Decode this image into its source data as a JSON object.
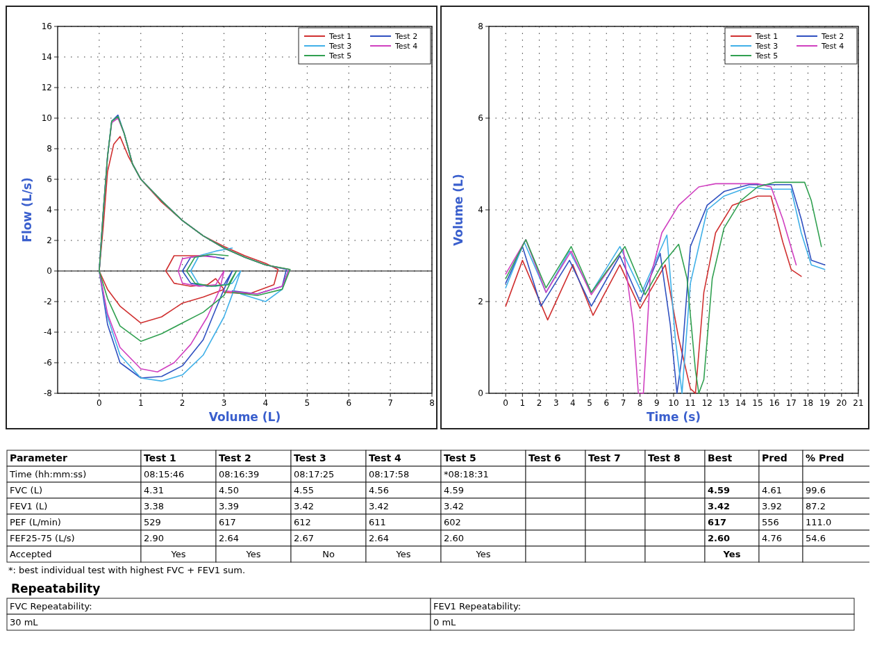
{
  "chart_data": [
    {
      "type": "line",
      "xlabel": "Volume (L)",
      "ylabel": "Flow (L/s)",
      "xlim": [
        -1,
        8
      ],
      "ylim": [
        -8,
        16
      ],
      "xticks": [
        0,
        1,
        2,
        3,
        4,
        5,
        6,
        7,
        8
      ],
      "yticks": [
        -8,
        -6,
        -4,
        -2,
        0,
        2,
        4,
        6,
        8,
        10,
        12,
        14,
        16
      ],
      "grid": true,
      "legend": "top right",
      "ref_lines": [
        {
          "axis": "y",
          "value": 0,
          "color": "#000000"
        }
      ],
      "series": [
        {
          "name": "Test 1",
          "color": "#d03030",
          "x": [
            2.6,
            2.2,
            1.8,
            1.6,
            1.8,
            2.2,
            2.6,
            2.8,
            3.0,
            2.5,
            2.0,
            1.5,
            1.0,
            0.5,
            0.2,
            0,
            0.1,
            0.2,
            0.35,
            0.5,
            0.7,
            1.0,
            1.5,
            2.0,
            2.5,
            3.0,
            3.5,
            4.0,
            4.3,
            4.2,
            3.6,
            3.0
          ],
          "values": [
            1.0,
            1.0,
            1.0,
            0,
            -0.8,
            -1.0,
            -0.9,
            -0.5,
            -1.2,
            -1.7,
            -2.1,
            -3.0,
            -3.4,
            -2.3,
            -1.2,
            0,
            3,
            6.5,
            8.3,
            8.8,
            7.5,
            6.0,
            4.5,
            3.3,
            2.3,
            1.6,
            1.0,
            0.5,
            0.1,
            -0.9,
            -1.5,
            -1.4
          ]
        },
        {
          "name": "Test 2",
          "color": "#3050c0",
          "x": [
            3.0,
            2.6,
            2.2,
            2.0,
            2.2,
            2.6,
            3.0,
            3.2,
            3.0,
            2.8,
            2.5,
            2.0,
            1.5,
            1.0,
            0.5,
            0.2,
            0,
            0.1,
            0.2,
            0.3,
            0.45,
            0.6,
            0.8,
            1.0,
            1.5,
            2.0,
            2.5,
            3.0,
            3.5,
            4.0,
            4.5,
            4.4,
            3.8,
            3.2
          ],
          "values": [
            0.8,
            1.0,
            0.9,
            0,
            -0.8,
            -1.0,
            -0.9,
            0,
            -1.2,
            -2.5,
            -4.5,
            -6.2,
            -6.9,
            -7.0,
            -6.0,
            -3.5,
            0,
            4,
            7.5,
            9.8,
            10.2,
            9.0,
            7.0,
            6.0,
            4.6,
            3.3,
            2.3,
            1.5,
            0.9,
            0.4,
            0.1,
            -1.0,
            -1.5,
            -1.3
          ]
        },
        {
          "name": "Test 3",
          "color": "#40b0e8",
          "x": [
            3.2,
            2.8,
            2.4,
            2.2,
            2.4,
            2.8,
            3.2,
            3.4,
            3.3,
            3.0,
            2.5,
            2.0,
            1.5,
            1.0,
            0.5,
            0.2,
            0,
            0.1,
            0.2,
            0.3,
            0.45,
            0.6,
            0.8,
            1.0,
            1.5,
            2.0,
            2.5,
            3.0,
            3.5,
            4.0,
            4.55,
            4.4,
            4.0,
            3.4
          ],
          "values": [
            1.5,
            1.3,
            1.0,
            0,
            -0.9,
            -1.0,
            -0.8,
            0,
            -0.8,
            -3.0,
            -5.5,
            -6.8,
            -7.2,
            -7.0,
            -5.5,
            -3.0,
            0,
            4,
            7.5,
            9.8,
            10.1,
            9.0,
            7.0,
            6.0,
            4.6,
            3.3,
            2.3,
            1.5,
            0.9,
            0.4,
            0.1,
            -1.2,
            -2.0,
            -1.5
          ]
        },
        {
          "name": "Test 4",
          "color": "#d040c0",
          "x": [
            2.8,
            2.4,
            2.0,
            1.9,
            2.0,
            2.4,
            2.8,
            3.0,
            2.9,
            2.6,
            2.2,
            1.8,
            1.4,
            1.0,
            0.5,
            0.2,
            0,
            0.1,
            0.2,
            0.3,
            0.45,
            0.6,
            0.8,
            1.0,
            1.5,
            2.0,
            2.5,
            3.0,
            3.5,
            4.0,
            4.56,
            4.4,
            3.8,
            3.0
          ],
          "values": [
            0.9,
            1.0,
            0.8,
            0,
            -0.8,
            -1.0,
            -0.9,
            0,
            -1.2,
            -3.0,
            -4.8,
            -6.0,
            -6.6,
            -6.4,
            -5.0,
            -2.8,
            0,
            4,
            7.5,
            9.7,
            10.0,
            9.0,
            7.0,
            6.0,
            4.6,
            3.3,
            2.3,
            1.5,
            0.9,
            0.4,
            0.1,
            -1.0,
            -1.5,
            -1.3
          ]
        },
        {
          "name": "Test 5",
          "color": "#30a050",
          "x": [
            3.1,
            2.7,
            2.3,
            2.1,
            2.3,
            2.7,
            3.1,
            3.3,
            3.0,
            2.5,
            2.0,
            1.5,
            1.0,
            0.5,
            0.2,
            0,
            0.1,
            0.2,
            0.3,
            0.45,
            0.6,
            0.8,
            1.0,
            1.5,
            2.0,
            2.5,
            3.0,
            3.5,
            4.0,
            4.59,
            4.4,
            3.8,
            3.2
          ],
          "values": [
            1.0,
            1.1,
            0.9,
            0,
            -0.8,
            -1.0,
            -0.9,
            0,
            -1.6,
            -2.7,
            -3.4,
            -4.1,
            -4.6,
            -3.6,
            -1.8,
            0,
            4,
            7.5,
            9.8,
            10.1,
            9.0,
            7.0,
            6.0,
            4.6,
            3.3,
            2.3,
            1.5,
            0.9,
            0.4,
            0.1,
            -1.2,
            -1.6,
            -1.4
          ]
        }
      ]
    },
    {
      "type": "line",
      "xlabel": "Time (s)",
      "ylabel": "Volume (L)",
      "xlim": [
        -1,
        21
      ],
      "ylim": [
        0,
        8
      ],
      "xticks": [
        0,
        1,
        2,
        3,
        4,
        5,
        6,
        7,
        8,
        9,
        10,
        11,
        12,
        13,
        14,
        15,
        16,
        17,
        18,
        19,
        20,
        21
      ],
      "yticks": [
        0,
        2,
        4,
        6,
        8
      ],
      "grid": true,
      "legend": "top right",
      "series": [
        {
          "name": "Test 1",
          "color": "#d03030",
          "x": [
            0,
            1,
            2.5,
            4,
            5.2,
            6.8,
            8,
            9.5,
            10.3,
            11,
            11.3,
            11.8,
            12.5,
            13.5,
            15,
            15.8,
            16.5,
            17,
            17.6
          ],
          "values": [
            1.9,
            2.9,
            1.6,
            2.8,
            1.7,
            2.8,
            1.85,
            2.8,
            1.2,
            0.1,
            0,
            2.2,
            3.5,
            4.1,
            4.3,
            4.3,
            3.3,
            2.7,
            2.55
          ]
        },
        {
          "name": "Test 2",
          "color": "#3050c0",
          "x": [
            0,
            1,
            2.1,
            3.8,
            5.1,
            6.8,
            8,
            9.2,
            9.8,
            10.2,
            10.5,
            11,
            12,
            13,
            14.5,
            17,
            17.6,
            18.2,
            19
          ],
          "values": [
            2.4,
            3.2,
            1.9,
            2.9,
            1.9,
            3.0,
            2.0,
            3.05,
            1.5,
            0,
            0.8,
            3.2,
            4.1,
            4.4,
            4.55,
            4.55,
            3.8,
            2.9,
            2.8
          ]
        },
        {
          "name": "Test 3",
          "color": "#40b0e8",
          "x": [
            0,
            1.1,
            2.4,
            3.8,
            5.1,
            6.8,
            8.1,
            9.6,
            10.1,
            10.5,
            11,
            12,
            13,
            14.5,
            15.5,
            17,
            17.6,
            18.2,
            19
          ],
          "values": [
            2.3,
            3.3,
            2.2,
            3.1,
            2.2,
            3.2,
            2.2,
            3.45,
            1.2,
            0,
            2.4,
            4.0,
            4.3,
            4.5,
            4.45,
            4.45,
            3.5,
            2.8,
            2.7
          ]
        },
        {
          "name": "Test 4",
          "color": "#d040c0",
          "x": [
            0,
            1.2,
            2.4,
            3.9,
            5.1,
            7,
            7.6,
            7.9,
            8.2,
            8.6,
            9.3,
            10.3,
            11.5,
            12.5,
            15,
            15.8,
            16.5,
            17.3
          ],
          "values": [
            2.6,
            3.35,
            2.2,
            3.1,
            2.15,
            3.15,
            1.5,
            0,
            0,
            2.5,
            3.5,
            4.1,
            4.5,
            4.57,
            4.57,
            4.5,
            3.8,
            2.8
          ]
        },
        {
          "name": "Test 5",
          "color": "#30a050",
          "x": [
            0,
            1.2,
            2.4,
            3.9,
            5.1,
            7.1,
            8.3,
            9.3,
            10.3,
            10.8,
            11.3,
            11.5,
            11.8,
            12.3,
            13,
            14,
            15,
            16,
            17.8,
            18.2,
            18.8
          ],
          "values": [
            2.5,
            3.35,
            2.3,
            3.2,
            2.2,
            3.2,
            2.15,
            2.8,
            3.25,
            2.5,
            0.5,
            0,
            0.3,
            2.5,
            3.6,
            4.2,
            4.5,
            4.6,
            4.6,
            4.2,
            3.2
          ]
        }
      ]
    },
    {
      "type": "other",
      "subtitle": "Repeatability",
      "categories": [
        "Parameter",
        "Test 1",
        "Test 2",
        "Test 3",
        "Test 4",
        "Test 5",
        "Test 6",
        "Test 7",
        "Test 8",
        "Best",
        "Pred",
        "% Pred"
      ],
      "y_categories": [
        "Time (hh:mm:ss)",
        "FVC (L)",
        "FEV1 (L)",
        "PEF (L/min)",
        "FEF25-75 (L/s)",
        "Accepted"
      ],
      "cell_labels": [
        [
          "08:15:46",
          "08:16:39",
          "08:17:25",
          "08:17:58",
          "*08:18:31",
          null,
          null,
          null,
          null,
          null,
          null
        ],
        [
          "4.31",
          "4.50",
          "4.55",
          "4.56",
          "4.59",
          null,
          null,
          null,
          "4.59",
          "4.61",
          "99.6"
        ],
        [
          "3.38",
          "3.39",
          "3.42",
          "3.42",
          "3.42",
          null,
          null,
          null,
          "3.42",
          "3.92",
          "87.2"
        ],
        [
          "529",
          "617",
          "612",
          "611",
          "602",
          null,
          null,
          null,
          "617",
          "556",
          "111.0"
        ],
        [
          "2.90",
          "2.64",
          "2.67",
          "2.64",
          "2.60",
          null,
          null,
          null,
          "2.60",
          "4.76",
          "54.6"
        ],
        [
          "Yes",
          "Yes",
          "No",
          "Yes",
          "Yes",
          null,
          null,
          null,
          "Yes",
          null,
          null
        ]
      ],
      "annotations": [
        "*: best individual test with highest FVC + FEV1 sum.",
        "FVC Repeatability:",
        "30 mL",
        "FEV1 Repeatability:",
        "0 mL"
      ]
    }
  ]
}
